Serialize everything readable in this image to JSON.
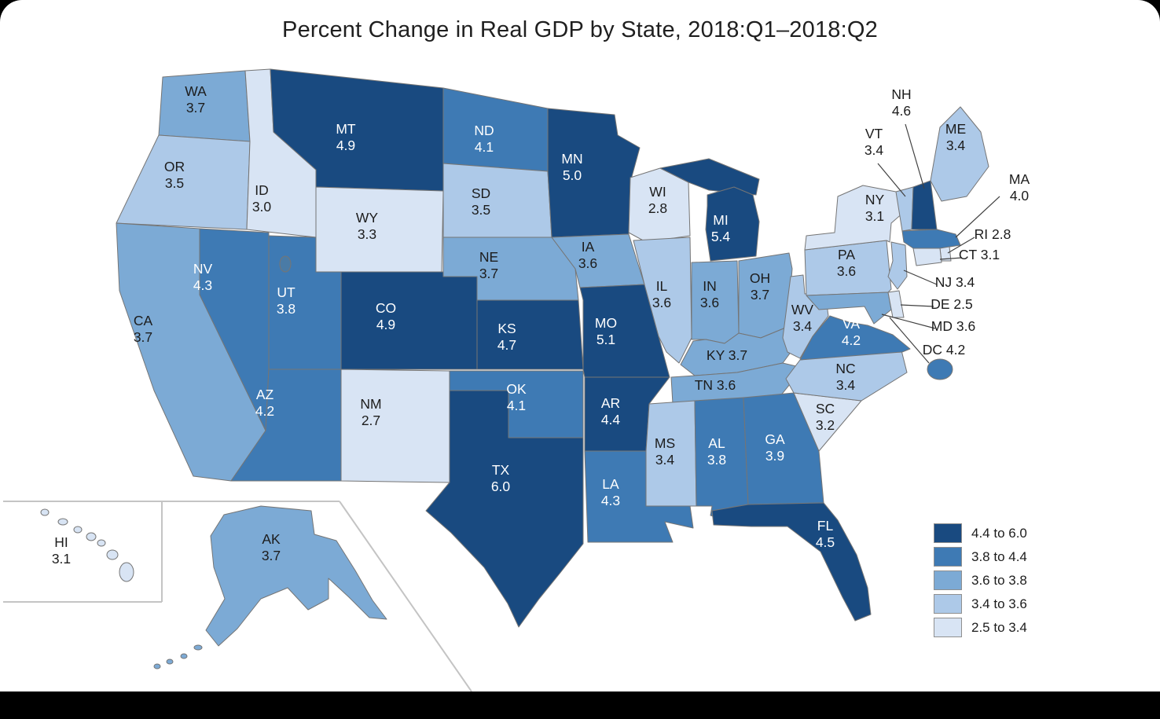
{
  "title": "Percent Change in Real GDP by State, 2018:Q1–2018:Q2",
  "legend": {
    "bins": [
      {
        "label": "4.4 to 6.0",
        "color": "#194a80"
      },
      {
        "label": "3.8 to 4.4",
        "color": "#3e7ab4"
      },
      {
        "label": "3.6 to 3.8",
        "color": "#7caad5"
      },
      {
        "label": "3.4 to 3.6",
        "color": "#adc9e8"
      },
      {
        "label": "2.5 to 3.4",
        "color": "#d8e4f4"
      }
    ]
  },
  "chart_data": {
    "type": "choropleth",
    "title": "Percent Change in Real GDP by State, 2018:Q1–2018:Q2",
    "value_unit": "percent",
    "bins": [
      "4.4 to 6.0",
      "3.8 to 4.4",
      "3.6 to 3.8",
      "3.4 to 3.6",
      "2.5 to 3.4"
    ],
    "states": [
      {
        "abbr": "AL",
        "value": 3.8,
        "bin": 1
      },
      {
        "abbr": "AK",
        "value": 3.7,
        "bin": 2
      },
      {
        "abbr": "AZ",
        "value": 4.2,
        "bin": 1
      },
      {
        "abbr": "AR",
        "value": 4.4,
        "bin": 0
      },
      {
        "abbr": "CA",
        "value": 3.7,
        "bin": 2
      },
      {
        "abbr": "CO",
        "value": 4.9,
        "bin": 0
      },
      {
        "abbr": "CT",
        "value": 3.1,
        "bin": 4
      },
      {
        "abbr": "DE",
        "value": 2.5,
        "bin": 4
      },
      {
        "abbr": "DC",
        "value": 4.2,
        "bin": 1
      },
      {
        "abbr": "FL",
        "value": 4.5,
        "bin": 0
      },
      {
        "abbr": "GA",
        "value": 3.9,
        "bin": 1
      },
      {
        "abbr": "HI",
        "value": 3.1,
        "bin": 4
      },
      {
        "abbr": "ID",
        "value": 3.0,
        "bin": 4
      },
      {
        "abbr": "IL",
        "value": 3.6,
        "bin": 3
      },
      {
        "abbr": "IN",
        "value": 3.6,
        "bin": 2
      },
      {
        "abbr": "IA",
        "value": 3.6,
        "bin": 2
      },
      {
        "abbr": "KS",
        "value": 4.7,
        "bin": 0
      },
      {
        "abbr": "KY",
        "value": 3.7,
        "bin": 2
      },
      {
        "abbr": "LA",
        "value": 4.3,
        "bin": 1
      },
      {
        "abbr": "ME",
        "value": 3.4,
        "bin": 3
      },
      {
        "abbr": "MD",
        "value": 3.6,
        "bin": 2
      },
      {
        "abbr": "MA",
        "value": 4.0,
        "bin": 1
      },
      {
        "abbr": "MI",
        "value": 5.4,
        "bin": 0
      },
      {
        "abbr": "MN",
        "value": 5.0,
        "bin": 0
      },
      {
        "abbr": "MS",
        "value": 3.4,
        "bin": 3
      },
      {
        "abbr": "MO",
        "value": 5.1,
        "bin": 0
      },
      {
        "abbr": "MT",
        "value": 4.9,
        "bin": 0
      },
      {
        "abbr": "NE",
        "value": 3.7,
        "bin": 2
      },
      {
        "abbr": "NV",
        "value": 4.3,
        "bin": 1
      },
      {
        "abbr": "NH",
        "value": 4.6,
        "bin": 0
      },
      {
        "abbr": "NJ",
        "value": 3.4,
        "bin": 3
      },
      {
        "abbr": "NM",
        "value": 2.7,
        "bin": 4
      },
      {
        "abbr": "NY",
        "value": 3.1,
        "bin": 4
      },
      {
        "abbr": "NC",
        "value": 3.4,
        "bin": 3
      },
      {
        "abbr": "ND",
        "value": 4.1,
        "bin": 1
      },
      {
        "abbr": "OH",
        "value": 3.7,
        "bin": 2
      },
      {
        "abbr": "OK",
        "value": 4.1,
        "bin": 1
      },
      {
        "abbr": "OR",
        "value": 3.5,
        "bin": 3
      },
      {
        "abbr": "PA",
        "value": 3.6,
        "bin": 3
      },
      {
        "abbr": "RI",
        "value": 2.8,
        "bin": 4
      },
      {
        "abbr": "SC",
        "value": 3.2,
        "bin": 4
      },
      {
        "abbr": "SD",
        "value": 3.5,
        "bin": 3
      },
      {
        "abbr": "TN",
        "value": 3.6,
        "bin": 2
      },
      {
        "abbr": "TX",
        "value": 6.0,
        "bin": 0
      },
      {
        "abbr": "UT",
        "value": 3.8,
        "bin": 1
      },
      {
        "abbr": "VT",
        "value": 3.4,
        "bin": 3
      },
      {
        "abbr": "VA",
        "value": 4.2,
        "bin": 1
      },
      {
        "abbr": "WA",
        "value": 3.7,
        "bin": 2
      },
      {
        "abbr": "WV",
        "value": 3.4,
        "bin": 3
      },
      {
        "abbr": "WI",
        "value": 2.8,
        "bin": 4
      },
      {
        "abbr": "WY",
        "value": 3.3,
        "bin": 4
      }
    ]
  }
}
